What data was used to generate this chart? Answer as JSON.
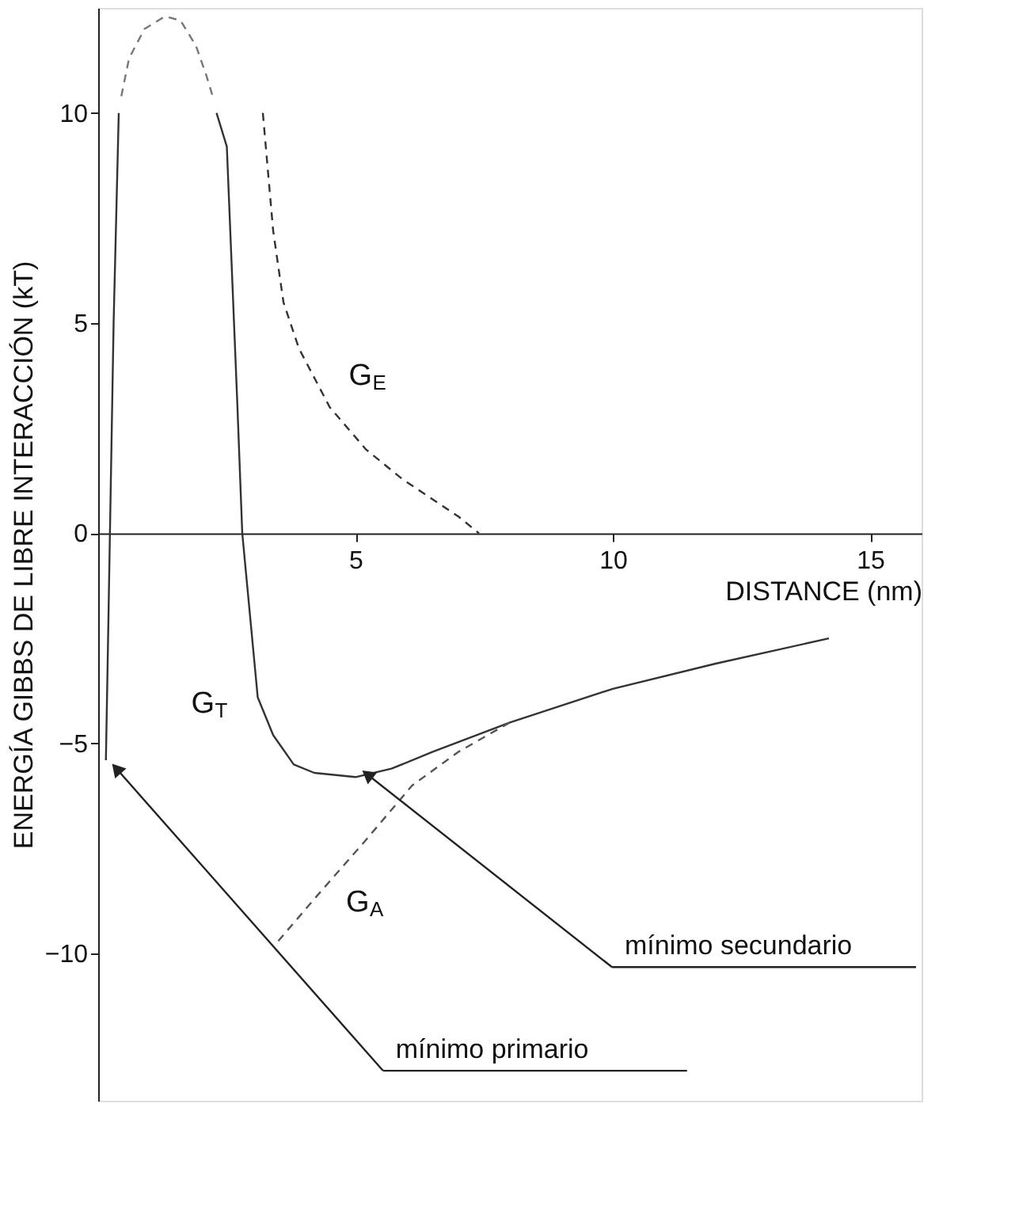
{
  "chart_data": {
    "type": "line",
    "xlabel": "DISTANCE (nm)",
    "ylabel": "ENERGÍA GIBBS DE LIBRE INTERACCIÓN (kT)",
    "xlim": [
      0,
      16
    ],
    "ylim": [
      -13.5,
      12.5
    ],
    "xticks": [
      5,
      10,
      15
    ],
    "yticks": [
      -10,
      -5,
      0,
      5,
      10
    ],
    "grid": false,
    "marker": "none",
    "series": [
      {
        "name": "G$_{T}$",
        "color": "#333333",
        "line_style": "solid",
        "x": [
          2.3,
          2.5,
          2.7,
          2.8,
          3.1,
          3.4,
          3.8,
          4.2,
          5.0,
          5.7,
          6.5,
          8,
          10,
          12,
          14.2
        ],
        "values": [
          10,
          9.2,
          3.2,
          0,
          -3.9,
          -4.8,
          -5.5,
          -5.7,
          -5.8,
          -5.6,
          -5.2,
          -4.5,
          -3.7,
          -3.1,
          -2.5
        ]
      },
      {
        "color": "#333333",
        "line_style": "solid",
        "x": [
          0.15,
          0.2,
          0.3,
          0.4
        ],
        "values": [
          -5.4,
          -2,
          5,
          10
        ]
      },
      {
        "color": "#777777",
        "line_style": "dashed",
        "x": [
          0.45,
          0.6,
          0.9,
          1.3,
          1.6,
          1.9,
          2.1,
          2.25
        ],
        "values": [
          10.4,
          11.3,
          12,
          12.3,
          12.2,
          11.6,
          10.9,
          10.3
        ]
      },
      {
        "name": "G$_{E}$",
        "color": "#333333",
        "line_style": "dashed",
        "x": [
          3.2,
          3.4,
          3.6,
          3.9,
          4.5,
          5.2,
          5.9,
          7.0,
          7.4
        ],
        "values": [
          10,
          7.2,
          5.5,
          4.4,
          3.0,
          2.0,
          1.3,
          0.4,
          0
        ]
      },
      {
        "name": "G$_{A}$",
        "color": "#555555",
        "line_style": "dashed",
        "x": [
          3.5,
          4.2,
          5.2,
          6.1,
          7.0,
          8.0
        ],
        "values": [
          -9.7,
          -8.7,
          -7.3,
          -6.0,
          -5.2,
          -4.5
        ]
      }
    ],
    "annotations": [
      {
        "text": "mínimo secundario",
        "x": 5.0,
        "y": -5.8
      },
      {
        "text": "mínimo primario",
        "x": 0.15,
        "y": -5.4
      }
    ]
  }
}
